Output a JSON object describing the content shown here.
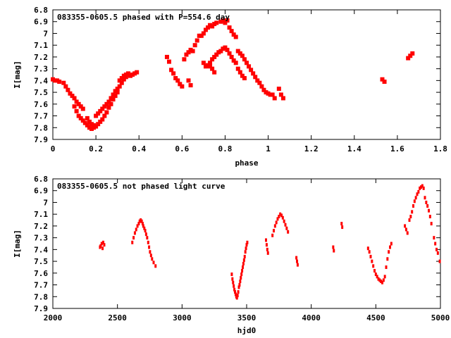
{
  "chart_data": [
    {
      "type": "scatter",
      "title": "083355-0605.5 phased with P=554.6 day",
      "xlabel": "phase",
      "ylabel": "I[mag]",
      "xlim": [
        0,
        1.8
      ],
      "ylim": [
        6.8,
        7.9
      ],
      "y_inverted": true,
      "x_ticks": [
        "0",
        "0.2",
        "0.4",
        "0.6",
        "0.8",
        "1",
        "1.2",
        "1.4",
        "1.6",
        "1.8"
      ],
      "y_ticks": [
        "6.8",
        "6.9",
        "7",
        "7.1",
        "7.2",
        "7.3",
        "7.4",
        "7.5",
        "7.6",
        "7.7",
        "7.8",
        "7.9"
      ],
      "color": "#ff0000",
      "series": [
        {
          "points": [
            [
              0.0,
              7.39
            ],
            [
              0.01,
              7.4
            ],
            [
              0.02,
              7.4
            ],
            [
              0.03,
              7.41
            ],
            [
              0.05,
              7.42
            ],
            [
              0.06,
              7.45
            ],
            [
              0.07,
              7.48
            ],
            [
              0.08,
              7.51
            ],
            [
              0.09,
              7.53
            ],
            [
              0.1,
              7.55
            ],
            [
              0.11,
              7.58
            ],
            [
              0.12,
              7.6
            ],
            [
              0.13,
              7.62
            ],
            [
              0.14,
              7.64
            ],
            [
              0.1,
              7.62
            ],
            [
              0.11,
              7.66
            ],
            [
              0.12,
              7.7
            ],
            [
              0.13,
              7.72
            ],
            [
              0.14,
              7.74
            ],
            [
              0.15,
              7.76
            ],
            [
              0.16,
              7.78
            ],
            [
              0.17,
              7.8
            ],
            [
              0.18,
              7.81
            ],
            [
              0.19,
              7.8
            ],
            [
              0.16,
              7.72
            ],
            [
              0.17,
              7.75
            ],
            [
              0.18,
              7.77
            ],
            [
              0.19,
              7.78
            ],
            [
              0.2,
              7.79
            ],
            [
              0.21,
              7.77
            ],
            [
              0.22,
              7.75
            ],
            [
              0.23,
              7.73
            ],
            [
              0.24,
              7.7
            ],
            [
              0.25,
              7.67
            ],
            [
              0.2,
              7.7
            ],
            [
              0.21,
              7.68
            ],
            [
              0.22,
              7.66
            ],
            [
              0.23,
              7.64
            ],
            [
              0.24,
              7.62
            ],
            [
              0.25,
              7.6
            ],
            [
              0.26,
              7.58
            ],
            [
              0.27,
              7.55
            ],
            [
              0.28,
              7.52
            ],
            [
              0.29,
              7.49
            ],
            [
              0.26,
              7.63
            ],
            [
              0.27,
              7.6
            ],
            [
              0.28,
              7.56
            ],
            [
              0.29,
              7.53
            ],
            [
              0.3,
              7.5
            ],
            [
              0.3,
              7.47
            ],
            [
              0.31,
              7.45
            ],
            [
              0.32,
              7.42
            ],
            [
              0.33,
              7.39
            ],
            [
              0.34,
              7.37
            ],
            [
              0.31,
              7.4
            ],
            [
              0.32,
              7.38
            ],
            [
              0.33,
              7.36
            ],
            [
              0.34,
              7.35
            ],
            [
              0.35,
              7.34
            ],
            [
              0.36,
              7.36
            ],
            [
              0.37,
              7.35
            ],
            [
              0.38,
              7.34
            ],
            [
              0.39,
              7.33
            ],
            [
              0.53,
              7.2
            ],
            [
              0.54,
              7.24
            ],
            [
              0.55,
              7.31
            ],
            [
              0.56,
              7.34
            ],
            [
              0.57,
              7.38
            ],
            [
              0.58,
              7.4
            ],
            [
              0.59,
              7.43
            ],
            [
              0.6,
              7.45
            ],
            [
              0.61,
              7.22
            ],
            [
              0.62,
              7.18
            ],
            [
              0.63,
              7.16
            ],
            [
              0.64,
              7.14
            ],
            [
              0.63,
              7.4
            ],
            [
              0.64,
              7.44
            ],
            [
              0.65,
              7.15
            ],
            [
              0.66,
              7.1
            ],
            [
              0.67,
              7.06
            ],
            [
              0.68,
              7.02
            ],
            [
              0.69,
              7.02
            ],
            [
              0.7,
              7.0
            ],
            [
              0.71,
              6.97
            ],
            [
              0.72,
              6.95
            ],
            [
              0.7,
              7.25
            ],
            [
              0.71,
              7.28
            ],
            [
              0.72,
              7.27
            ],
            [
              0.73,
              7.25
            ],
            [
              0.74,
              7.22
            ],
            [
              0.75,
              7.2
            ],
            [
              0.76,
              7.18
            ],
            [
              0.77,
              7.16
            ],
            [
              0.73,
              6.93
            ],
            [
              0.74,
              6.94
            ],
            [
              0.75,
              6.92
            ],
            [
              0.76,
              6.91
            ],
            [
              0.78,
              7.15
            ],
            [
              0.79,
              7.13
            ],
            [
              0.8,
              7.12
            ],
            [
              0.81,
              7.14
            ],
            [
              0.78,
              6.9
            ],
            [
              0.79,
              6.89
            ],
            [
              0.8,
              6.91
            ],
            [
              0.81,
              6.89
            ],
            [
              0.82,
              6.95
            ],
            [
              0.83,
              6.98
            ],
            [
              0.84,
              7.01
            ],
            [
              0.85,
              7.03
            ],
            [
              0.82,
              7.17
            ],
            [
              0.83,
              7.2
            ],
            [
              0.84,
              7.23
            ],
            [
              0.85,
              7.25
            ],
            [
              0.86,
              7.15
            ],
            [
              0.87,
              7.17
            ],
            [
              0.88,
              7.19
            ],
            [
              0.89,
              7.22
            ],
            [
              0.86,
              7.3
            ],
            [
              0.87,
              7.33
            ],
            [
              0.88,
              7.36
            ],
            [
              0.89,
              7.38
            ],
            [
              0.9,
              7.25
            ],
            [
              0.91,
              7.28
            ],
            [
              0.92,
              7.31
            ],
            [
              0.93,
              7.34
            ],
            [
              0.94,
              7.37
            ],
            [
              0.95,
              7.4
            ],
            [
              0.96,
              7.42
            ],
            [
              0.97,
              7.45
            ],
            [
              0.98,
              7.48
            ],
            [
              0.99,
              7.5
            ],
            [
              1.0,
              7.51
            ],
            [
              1.01,
              7.52
            ],
            [
              1.02,
              7.52
            ],
            [
              1.03,
              7.55
            ],
            [
              1.05,
              7.47
            ],
            [
              1.06,
              7.52
            ],
            [
              1.07,
              7.55
            ],
            [
              0.74,
              7.3
            ],
            [
              0.75,
              7.33
            ],
            [
              0.73,
              7.28
            ],
            [
              1.53,
              7.39
            ],
            [
              1.54,
              7.41
            ],
            [
              1.65,
              7.21
            ],
            [
              1.66,
              7.19
            ],
            [
              1.67,
              7.17
            ]
          ]
        }
      ]
    },
    {
      "type": "scatter",
      "title": "083355-0605.5 not phased light curve",
      "xlabel": "hjd0",
      "ylabel": "I[mag]",
      "xlim": [
        2000,
        5000
      ],
      "ylim": [
        6.8,
        7.9
      ],
      "y_inverted": true,
      "x_ticks": [
        "2000",
        "2500",
        "3000",
        "3500",
        "4000",
        "4500",
        "5000"
      ],
      "y_ticks": [
        "6.8",
        "6.9",
        "7",
        "7.1",
        "7.2",
        "7.3",
        "7.4",
        "7.5",
        "7.6",
        "7.7",
        "7.8",
        "7.9"
      ],
      "color": "#ff0000",
      "series": [
        {
          "points": [
            [
              2365,
              7.38
            ],
            [
              2370,
              7.37
            ],
            [
              2378,
              7.35
            ],
            [
              2385,
              7.39
            ],
            [
              2390,
              7.34
            ],
            [
              2398,
              7.36
            ],
            [
              2615,
              7.34
            ],
            [
              2625,
              7.3
            ],
            [
              2635,
              7.26
            ],
            [
              2645,
              7.23
            ],
            [
              2655,
              7.2
            ],
            [
              2665,
              7.18
            ],
            [
              2672,
              7.16
            ],
            [
              2680,
              7.15
            ],
            [
              2688,
              7.16
            ],
            [
              2695,
              7.18
            ],
            [
              2700,
              7.2
            ],
            [
              2708,
              7.22
            ],
            [
              2715,
              7.24
            ],
            [
              2722,
              7.27
            ],
            [
              2730,
              7.3
            ],
            [
              2738,
              7.34
            ],
            [
              2745,
              7.38
            ],
            [
              2752,
              7.42
            ],
            [
              2760,
              7.45
            ],
            [
              2768,
              7.48
            ],
            [
              2780,
              7.51
            ],
            [
              2795,
              7.54
            ],
            [
              3385,
              7.61
            ],
            [
              3390,
              7.65
            ],
            [
              3395,
              7.68
            ],
            [
              3400,
              7.71
            ],
            [
              3405,
              7.74
            ],
            [
              3410,
              7.76
            ],
            [
              3415,
              7.78
            ],
            [
              3420,
              7.8
            ],
            [
              3425,
              7.81
            ],
            [
              3430,
              7.79
            ],
            [
              3435,
              7.76
            ],
            [
              3440,
              7.72
            ],
            [
              3445,
              7.7
            ],
            [
              3450,
              7.67
            ],
            [
              3455,
              7.64
            ],
            [
              3460,
              7.61
            ],
            [
              3465,
              7.58
            ],
            [
              3470,
              7.55
            ],
            [
              3475,
              7.52
            ],
            [
              3480,
              7.49
            ],
            [
              3485,
              7.46
            ],
            [
              3490,
              7.42
            ],
            [
              3495,
              7.39
            ],
            [
              3500,
              7.36
            ],
            [
              3505,
              7.34
            ],
            [
              3650,
              7.32
            ],
            [
              3655,
              7.36
            ],
            [
              3660,
              7.4
            ],
            [
              3665,
              7.43
            ],
            [
              3700,
              7.28
            ],
            [
              3710,
              7.24
            ],
            [
              3720,
              7.2
            ],
            [
              3730,
              7.17
            ],
            [
              3740,
              7.14
            ],
            [
              3750,
              7.12
            ],
            [
              3760,
              7.1
            ],
            [
              3770,
              7.11
            ],
            [
              3780,
              7.13
            ],
            [
              3790,
              7.16
            ],
            [
              3800,
              7.19
            ],
            [
              3810,
              7.22
            ],
            [
              3820,
              7.25
            ],
            [
              3885,
              7.47
            ],
            [
              3890,
              7.5
            ],
            [
              3895,
              7.53
            ],
            [
              4170,
              7.38
            ],
            [
              4175,
              7.41
            ],
            [
              4235,
              7.18
            ],
            [
              4240,
              7.21
            ],
            [
              4440,
              7.39
            ],
            [
              4450,
              7.42
            ],
            [
              4460,
              7.46
            ],
            [
              4470,
              7.5
            ],
            [
              4480,
              7.54
            ],
            [
              4490,
              7.58
            ],
            [
              4500,
              7.61
            ],
            [
              4510,
              7.63
            ],
            [
              4520,
              7.65
            ],
            [
              4530,
              7.66
            ],
            [
              4540,
              7.67
            ],
            [
              4550,
              7.68
            ],
            [
              4560,
              7.66
            ],
            [
              4570,
              7.63
            ],
            [
              4580,
              7.55
            ],
            [
              4590,
              7.48
            ],
            [
              4600,
              7.42
            ],
            [
              4610,
              7.38
            ],
            [
              4620,
              7.35
            ],
            [
              4725,
              7.2
            ],
            [
              4735,
              7.23
            ],
            [
              4745,
              7.26
            ],
            [
              4760,
              7.15
            ],
            [
              4770,
              7.12
            ],
            [
              4780,
              7.08
            ],
            [
              4790,
              7.03
            ],
            [
              4800,
              6.99
            ],
            [
              4810,
              6.96
            ],
            [
              4820,
              6.93
            ],
            [
              4830,
              6.91
            ],
            [
              4840,
              6.88
            ],
            [
              4850,
              6.87
            ],
            [
              4860,
              6.86
            ],
            [
              4870,
              6.88
            ],
            [
              4880,
              6.96
            ],
            [
              4890,
              7.0
            ],
            [
              4900,
              7.03
            ],
            [
              4910,
              7.07
            ],
            [
              4920,
              7.12
            ],
            [
              4930,
              7.18
            ],
            [
              4950,
              7.3
            ],
            [
              4960,
              7.35
            ],
            [
              4970,
              7.4
            ],
            [
              4980,
              7.43
            ],
            [
              4995,
              7.5
            ]
          ]
        }
      ]
    }
  ]
}
